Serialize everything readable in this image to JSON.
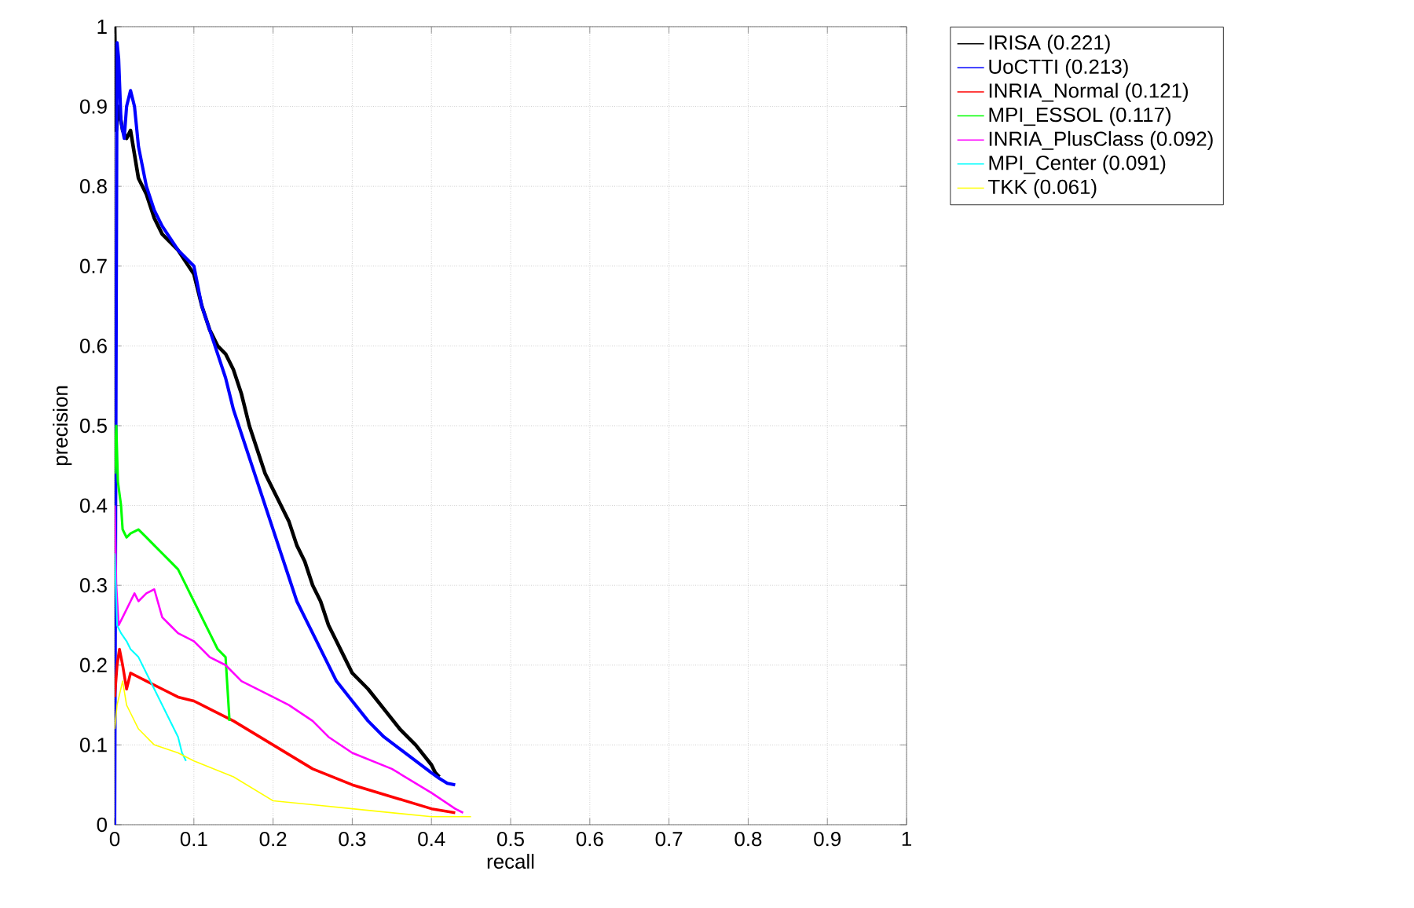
{
  "chart_data": {
    "type": "line",
    "xlabel": "recall",
    "ylabel": "precision",
    "xlim": [
      0,
      1
    ],
    "ylim": [
      0,
      1
    ],
    "xticks": [
      0,
      0.1,
      0.2,
      0.3,
      0.4,
      0.5,
      0.6,
      0.7,
      0.8,
      0.9,
      1
    ],
    "yticks": [
      0,
      0.1,
      0.2,
      0.3,
      0.4,
      0.5,
      0.6,
      0.7,
      0.8,
      0.9,
      1
    ],
    "grid": true,
    "legend": "top right",
    "line_style": "solid",
    "marker": "none",
    "series": [
      {
        "name": "IRISA (0.221)",
        "color": "#000000",
        "x": [
          0,
          0.002,
          0.005,
          0.01,
          0.015,
          0.02,
          0.025,
          0.03,
          0.04,
          0.05,
          0.06,
          0.08,
          0.1,
          0.11,
          0.12,
          0.13,
          0.14,
          0.15,
          0.16,
          0.17,
          0.18,
          0.19,
          0.2,
          0.21,
          0.22,
          0.23,
          0.24,
          0.25,
          0.26,
          0.27,
          0.28,
          0.29,
          0.3,
          0.32,
          0.34,
          0.36,
          0.38,
          0.4,
          0.405,
          0.41
        ],
        "values": [
          1.0,
          0.87,
          0.9,
          0.87,
          0.86,
          0.87,
          0.84,
          0.81,
          0.79,
          0.76,
          0.74,
          0.72,
          0.69,
          0.65,
          0.62,
          0.6,
          0.59,
          0.57,
          0.54,
          0.5,
          0.47,
          0.44,
          0.42,
          0.4,
          0.38,
          0.35,
          0.33,
          0.3,
          0.28,
          0.25,
          0.23,
          0.21,
          0.19,
          0.17,
          0.145,
          0.12,
          0.1,
          0.075,
          0.065,
          0.06
        ]
      },
      {
        "name": "UoCTTI (0.213)",
        "color": "#0000ff",
        "x": [
          0,
          0.003,
          0.005,
          0.008,
          0.012,
          0.015,
          0.02,
          0.025,
          0.03,
          0.04,
          0.05,
          0.06,
          0.08,
          0.1,
          0.11,
          0.12,
          0.13,
          0.14,
          0.15,
          0.16,
          0.17,
          0.18,
          0.19,
          0.2,
          0.21,
          0.22,
          0.23,
          0.24,
          0.25,
          0.26,
          0.27,
          0.28,
          0.3,
          0.32,
          0.34,
          0.36,
          0.38,
          0.4,
          0.41,
          0.42,
          0.43
        ],
        "values": [
          0,
          0.98,
          0.96,
          0.88,
          0.86,
          0.9,
          0.92,
          0.9,
          0.85,
          0.8,
          0.77,
          0.75,
          0.72,
          0.7,
          0.65,
          0.62,
          0.59,
          0.56,
          0.52,
          0.49,
          0.46,
          0.43,
          0.4,
          0.37,
          0.34,
          0.31,
          0.28,
          0.26,
          0.24,
          0.22,
          0.2,
          0.18,
          0.155,
          0.13,
          0.11,
          0.095,
          0.08,
          0.065,
          0.058,
          0.052,
          0.05
        ]
      },
      {
        "name": "INRIA_Normal (0.121)",
        "color": "#ff0000",
        "x": [
          0,
          0.003,
          0.006,
          0.01,
          0.015,
          0.02,
          0.03,
          0.04,
          0.06,
          0.08,
          0.1,
          0.12,
          0.15,
          0.2,
          0.25,
          0.3,
          0.35,
          0.4,
          0.43
        ],
        "values": [
          0.16,
          0.2,
          0.22,
          0.2,
          0.17,
          0.19,
          0.185,
          0.18,
          0.17,
          0.16,
          0.155,
          0.145,
          0.13,
          0.1,
          0.07,
          0.05,
          0.035,
          0.02,
          0.015
        ]
      },
      {
        "name": "MPI_ESSOL (0.117)",
        "color": "#00ff00",
        "x": [
          0,
          0.002,
          0.004,
          0.008,
          0.01,
          0.015,
          0.02,
          0.03,
          0.04,
          0.05,
          0.06,
          0.07,
          0.08,
          0.09,
          0.1,
          0.11,
          0.12,
          0.13,
          0.14,
          0.145
        ],
        "values": [
          0.44,
          0.5,
          0.43,
          0.4,
          0.37,
          0.36,
          0.365,
          0.37,
          0.36,
          0.35,
          0.34,
          0.33,
          0.32,
          0.3,
          0.28,
          0.26,
          0.24,
          0.22,
          0.21,
          0.13
        ]
      },
      {
        "name": "INRIA_PlusClass (0.092)",
        "color": "#ff00ff",
        "x": [
          0,
          0.002,
          0.005,
          0.01,
          0.02,
          0.025,
          0.03,
          0.04,
          0.05,
          0.06,
          0.07,
          0.08,
          0.1,
          0.11,
          0.12,
          0.14,
          0.16,
          0.2,
          0.22,
          0.25,
          0.27,
          0.3,
          0.35,
          0.4,
          0.43,
          0.44
        ],
        "values": [
          0.4,
          0.3,
          0.25,
          0.26,
          0.28,
          0.29,
          0.28,
          0.29,
          0.295,
          0.26,
          0.25,
          0.24,
          0.23,
          0.22,
          0.21,
          0.2,
          0.18,
          0.16,
          0.15,
          0.13,
          0.11,
          0.09,
          0.07,
          0.04,
          0.02,
          0.015
        ]
      },
      {
        "name": "MPI_Center (0.091)",
        "color": "#00ffff",
        "x": [
          0,
          0.003,
          0.008,
          0.015,
          0.02,
          0.03,
          0.04,
          0.05,
          0.06,
          0.07,
          0.08,
          0.085,
          0.09
        ],
        "values": [
          0.34,
          0.25,
          0.24,
          0.23,
          0.22,
          0.21,
          0.19,
          0.17,
          0.15,
          0.13,
          0.11,
          0.09,
          0.08
        ]
      },
      {
        "name": "TKK (0.061)",
        "color": "#ffff00",
        "x": [
          0,
          0.003,
          0.01,
          0.015,
          0.02,
          0.03,
          0.05,
          0.08,
          0.1,
          0.15,
          0.2,
          0.25,
          0.3,
          0.4,
          0.45
        ],
        "values": [
          0.12,
          0.15,
          0.18,
          0.15,
          0.14,
          0.12,
          0.1,
          0.09,
          0.08,
          0.06,
          0.03,
          0.025,
          0.02,
          0.01,
          0.01
        ]
      }
    ]
  }
}
